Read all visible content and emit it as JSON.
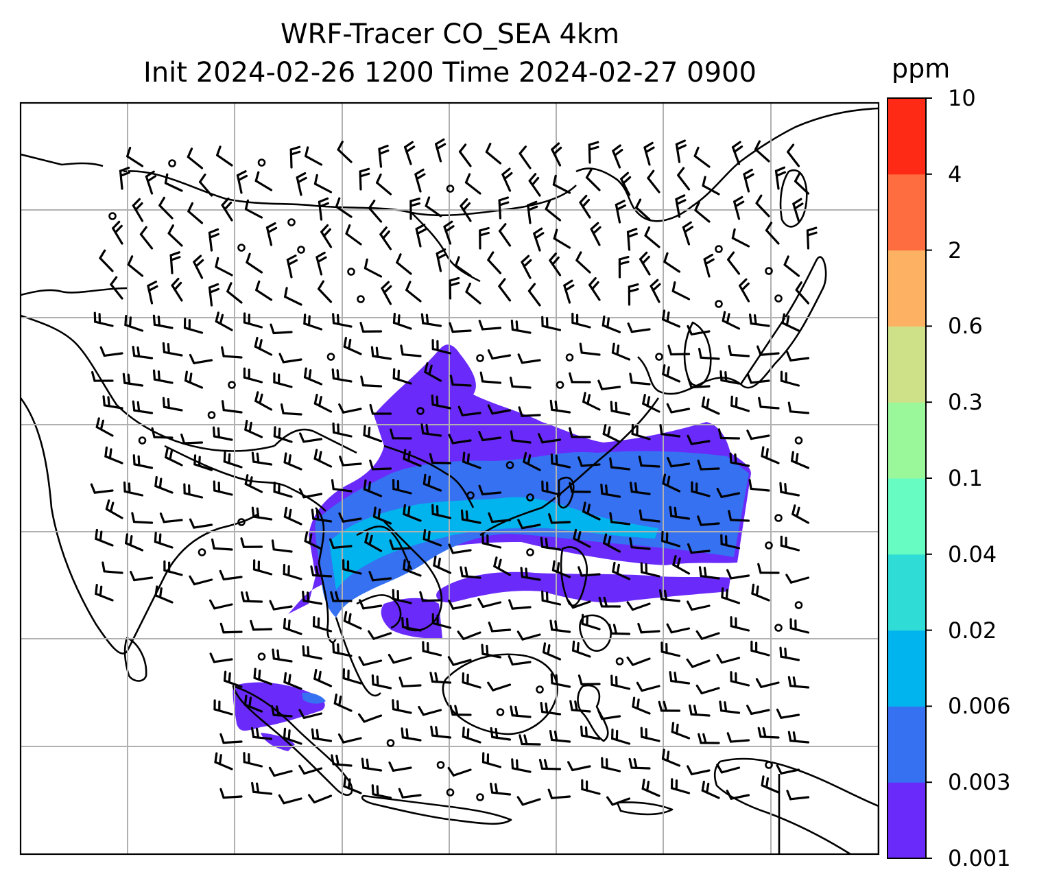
{
  "title": {
    "line1": "WRF-Tracer CO_SEA 4km",
    "line2": "Init 2024-02-26 1200 Time 2024-02-27 0900"
  },
  "colorbar": {
    "unit": "ppm",
    "levels": [
      "0.001",
      "0.003",
      "0.006",
      "0.02",
      "0.04",
      "0.1",
      "0.3",
      "0.6",
      "2",
      "4",
      "10"
    ],
    "colors": [
      "#6a2bfa",
      "#3571f1",
      "#02b4ed",
      "#2fdcd6",
      "#67fcc1",
      "#9af89a",
      "#cee188",
      "#fdb163",
      "#fe6d3f",
      "#fe2a16"
    ]
  },
  "map": {
    "frame_color": "#000000",
    "grid_color": "#b0b0b0",
    "coastline_color": "#000000",
    "wind_barb_color": "#000000"
  }
}
